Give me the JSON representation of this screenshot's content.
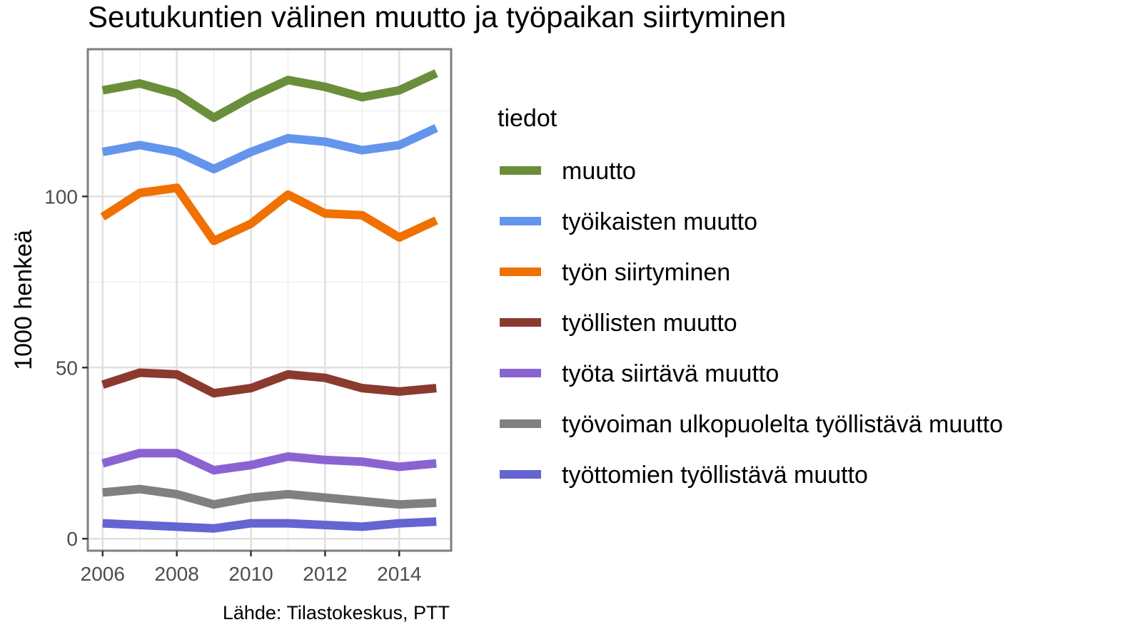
{
  "chart_data": {
    "type": "line",
    "title": "Seutukuntien välinen muutto ja työpaikan siirtyminen",
    "xlabel": "",
    "ylabel": "1000 henkeä",
    "caption": "Lähde: Tilastokeskus, PTT",
    "legend_title": "tiedot",
    "legend_position": "right",
    "grid": true,
    "xlim": [
      2005.6,
      2015.4
    ],
    "ylim": [
      -3.5,
      143
    ],
    "x_ticks": [
      2006,
      2008,
      2010,
      2012,
      2014
    ],
    "x_tick_labels": [
      "2006",
      "2008",
      "2010",
      "2012",
      "2014"
    ],
    "y_ticks": [
      0,
      50,
      100
    ],
    "y_tick_labels": [
      "0",
      "50",
      "100"
    ],
    "x": [
      2006,
      2007,
      2008,
      2009,
      2010,
      2011,
      2012,
      2013,
      2014,
      2015
    ],
    "series": [
      {
        "name": "muutto",
        "color": "#6b8e3a",
        "values": [
          131,
          133,
          130,
          123,
          129,
          134,
          132,
          129,
          131,
          136
        ]
      },
      {
        "name": "työikaisten muutto",
        "color": "#6495ed",
        "values": [
          113,
          115,
          113,
          108,
          113,
          117,
          116,
          113.5,
          115,
          120
        ]
      },
      {
        "name": "työn siirtyminen",
        "color": "#f07000",
        "values": [
          94,
          101,
          102.5,
          87,
          92,
          100.5,
          95,
          94.5,
          88,
          93
        ]
      },
      {
        "name": "työllisten muutto",
        "color": "#8b3a2e",
        "values": [
          45,
          48.5,
          48,
          42.5,
          44,
          48,
          47,
          44,
          43,
          44
        ]
      },
      {
        "name": "työta siirtävä muutto",
        "color": "#8a63d2",
        "values": [
          22,
          25,
          25,
          20,
          21.5,
          24,
          23,
          22.5,
          21,
          22
        ]
      },
      {
        "name": "työvoiman ulkopuolelta työllistävä muutto",
        "color": "#808080",
        "values": [
          13.5,
          14.5,
          13,
          10,
          12,
          13,
          12,
          11,
          10,
          10.5
        ]
      },
      {
        "name": "työttomien työllistävä muutto",
        "color": "#6464d2",
        "values": [
          4.5,
          4,
          3.5,
          3,
          4.5,
          4.5,
          4,
          3.5,
          4.5,
          5
        ]
      }
    ]
  }
}
